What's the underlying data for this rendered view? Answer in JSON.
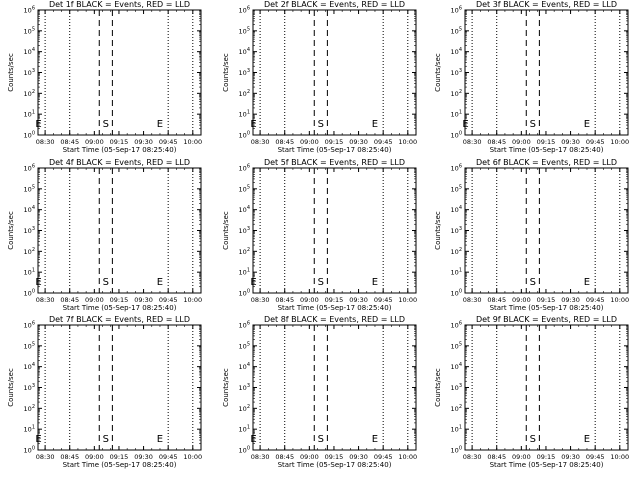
{
  "colors": {
    "background": "#ffffff",
    "events": "#000000",
    "lld": "#ff0000",
    "axes": "#000000"
  },
  "chart_data": [
    {
      "type": "line",
      "title": "Det 1f BLACK = Events, RED = LLD",
      "xlabel": "Start Time (05-Sep-17 08:25:40)",
      "ylabel": "Counts/sec",
      "x_ticks": [
        "08:30",
        "08:45",
        "09:00",
        "09:15",
        "09:30",
        "09:45",
        "10:00"
      ],
      "y_ticks": [
        "10^0",
        "10^1",
        "10^2",
        "10^3",
        "10^4",
        "10^5",
        "10^6"
      ],
      "y_scale": "log",
      "ylim": [
        1,
        1000000
      ],
      "xlim": [
        "08:25:40",
        "10:05:00"
      ],
      "dotted_lines": [
        "08:30",
        "08:45",
        "09:45",
        "10:00"
      ],
      "dashed_lines": [
        "09:03",
        "09:11"
      ],
      "markers": [
        {
          "label": "E",
          "x": "08:26"
        },
        {
          "label": "S",
          "x": "09:07"
        },
        {
          "label": "E",
          "x": "09:40"
        }
      ],
      "series": []
    },
    {
      "type": "line",
      "title": "Det 2f BLACK = Events, RED = LLD",
      "xlabel": "Start Time (05-Sep-17 08:25:40)",
      "ylabel": "Counts/sec",
      "x_ticks": [
        "08:30",
        "08:45",
        "09:00",
        "09:15",
        "09:30",
        "09:45",
        "10:00"
      ],
      "y_ticks": [
        "10^0",
        "10^1",
        "10^2",
        "10^3",
        "10^4",
        "10^5",
        "10^6"
      ],
      "y_scale": "log",
      "ylim": [
        1,
        1000000
      ],
      "xlim": [
        "08:25:40",
        "10:05:00"
      ],
      "dotted_lines": [
        "08:30",
        "08:45",
        "09:45",
        "10:00"
      ],
      "dashed_lines": [
        "09:03",
        "09:11"
      ],
      "markers": [
        {
          "label": "E",
          "x": "08:26"
        },
        {
          "label": "S",
          "x": "09:07"
        },
        {
          "label": "E",
          "x": "09:40"
        }
      ],
      "series": []
    },
    {
      "type": "line",
      "title": "Det 3f BLACK = Events, RED = LLD",
      "xlabel": "Start Time (05-Sep-17 08:25:40)",
      "ylabel": "Counts/sec",
      "x_ticks": [
        "08:30",
        "08:45",
        "09:00",
        "09:15",
        "09:30",
        "09:45",
        "10:00"
      ],
      "y_ticks": [
        "10^0",
        "10^1",
        "10^2",
        "10^3",
        "10^4",
        "10^5",
        "10^6"
      ],
      "y_scale": "log",
      "ylim": [
        1,
        1000000
      ],
      "xlim": [
        "08:25:40",
        "10:05:00"
      ],
      "dotted_lines": [
        "08:30",
        "08:45",
        "09:45",
        "10:00"
      ],
      "dashed_lines": [
        "09:03",
        "09:11"
      ],
      "markers": [
        {
          "label": "E",
          "x": "08:26"
        },
        {
          "label": "S",
          "x": "09:07"
        },
        {
          "label": "E",
          "x": "09:40"
        }
      ],
      "series": []
    },
    {
      "type": "line",
      "title": "Det 4f BLACK = Events, RED = LLD",
      "xlabel": "Start Time (05-Sep-17 08:25:40)",
      "ylabel": "Counts/sec",
      "x_ticks": [
        "08:30",
        "08:45",
        "09:00",
        "09:15",
        "09:30",
        "09:45",
        "10:00"
      ],
      "y_ticks": [
        "10^0",
        "10^1",
        "10^2",
        "10^3",
        "10^4",
        "10^5",
        "10^6"
      ],
      "y_scale": "log",
      "ylim": [
        1,
        1000000
      ],
      "xlim": [
        "08:25:40",
        "10:05:00"
      ],
      "dotted_lines": [
        "08:30",
        "08:45",
        "09:45",
        "10:00"
      ],
      "dashed_lines": [
        "09:03",
        "09:11"
      ],
      "markers": [
        {
          "label": "E",
          "x": "08:26"
        },
        {
          "label": "S",
          "x": "09:07"
        },
        {
          "label": "E",
          "x": "09:40"
        }
      ],
      "series": []
    },
    {
      "type": "line",
      "title": "Det 5f BLACK = Events, RED = LLD",
      "xlabel": "Start Time (05-Sep-17 08:25:40)",
      "ylabel": "Counts/sec",
      "x_ticks": [
        "08:30",
        "08:45",
        "09:00",
        "09:15",
        "09:30",
        "09:45",
        "10:00"
      ],
      "y_ticks": [
        "10^0",
        "10^1",
        "10^2",
        "10^3",
        "10^4",
        "10^5",
        "10^6"
      ],
      "y_scale": "log",
      "ylim": [
        1,
        1000000
      ],
      "xlim": [
        "08:25:40",
        "10:05:00"
      ],
      "dotted_lines": [
        "08:30",
        "08:45",
        "09:45",
        "10:00"
      ],
      "dashed_lines": [
        "09:03",
        "09:11"
      ],
      "markers": [
        {
          "label": "E",
          "x": "08:26"
        },
        {
          "label": "S",
          "x": "09:07"
        },
        {
          "label": "E",
          "x": "09:40"
        }
      ],
      "series": []
    },
    {
      "type": "line",
      "title": "Det 6f BLACK = Events, RED = LLD",
      "xlabel": "Start Time (05-Sep-17 08:25:40)",
      "ylabel": "Counts/sec",
      "x_ticks": [
        "08:30",
        "08:45",
        "09:00",
        "09:15",
        "09:30",
        "09:45",
        "10:00"
      ],
      "y_ticks": [
        "10^0",
        "10^1",
        "10^2",
        "10^3",
        "10^4",
        "10^5",
        "10^6"
      ],
      "y_scale": "log",
      "ylim": [
        1,
        1000000
      ],
      "xlim": [
        "08:25:40",
        "10:05:00"
      ],
      "dotted_lines": [
        "08:30",
        "08:45",
        "09:45",
        "10:00"
      ],
      "dashed_lines": [
        "09:03",
        "09:11"
      ],
      "markers": [
        {
          "label": "S",
          "x": "09:07"
        },
        {
          "label": "E",
          "x": "09:40"
        }
      ],
      "series": []
    },
    {
      "type": "line",
      "title": "Det 7f BLACK = Events, RED = LLD",
      "xlabel": "Start Time (05-Sep-17 08:25:40)",
      "ylabel": "Counts/sec",
      "x_ticks": [
        "08:30",
        "08:45",
        "09:00",
        "09:15",
        "09:30",
        "09:45",
        "10:00"
      ],
      "y_ticks": [
        "10^0",
        "10^1",
        "10^2",
        "10^3",
        "10^4",
        "10^5",
        "10^6"
      ],
      "y_scale": "log",
      "ylim": [
        1,
        1000000
      ],
      "xlim": [
        "08:25:40",
        "10:05:00"
      ],
      "dotted_lines": [
        "08:30",
        "08:45",
        "09:45",
        "10:00"
      ],
      "dashed_lines": [
        "09:03",
        "09:11"
      ],
      "markers": [
        {
          "label": "E",
          "x": "08:26"
        },
        {
          "label": "S",
          "x": "09:07"
        },
        {
          "label": "E",
          "x": "09:40"
        }
      ],
      "series": []
    },
    {
      "type": "line",
      "title": "Det 8f BLACK = Events, RED = LLD",
      "xlabel": "Start Time (05-Sep-17 08:25:40)",
      "ylabel": "Counts/sec",
      "x_ticks": [
        "08:30",
        "08:45",
        "09:00",
        "09:15",
        "09:30",
        "09:45",
        "10:00"
      ],
      "y_ticks": [
        "10^0",
        "10^1",
        "10^2",
        "10^3",
        "10^4",
        "10^5",
        "10^6"
      ],
      "y_scale": "log",
      "ylim": [
        1,
        1000000
      ],
      "xlim": [
        "08:25:40",
        "10:05:00"
      ],
      "dotted_lines": [
        "08:30",
        "08:45",
        "09:45",
        "10:00"
      ],
      "dashed_lines": [
        "09:03",
        "09:11"
      ],
      "markers": [
        {
          "label": "E",
          "x": "08:26"
        },
        {
          "label": "S",
          "x": "09:07"
        },
        {
          "label": "E",
          "x": "09:40"
        }
      ],
      "series": []
    },
    {
      "type": "line",
      "title": "Det 9f BLACK = Events, RED = LLD",
      "xlabel": "Start Time (05-Sep-17 08:25:40)",
      "ylabel": "Counts/sec",
      "x_ticks": [
        "08:30",
        "08:45",
        "09:00",
        "09:15",
        "09:30",
        "09:45",
        "10:00"
      ],
      "y_ticks": [
        "10^0",
        "10^1",
        "10^2",
        "10^3",
        "10^4",
        "10^5",
        "10^6"
      ],
      "y_scale": "log",
      "ylim": [
        1,
        1000000
      ],
      "xlim": [
        "08:25:40",
        "10:05:00"
      ],
      "dotted_lines": [
        "08:30",
        "08:45",
        "09:45",
        "10:00"
      ],
      "dashed_lines": [
        "09:03",
        "09:11"
      ],
      "markers": [
        {
          "label": "S",
          "x": "09:07"
        },
        {
          "label": "E",
          "x": "09:40"
        }
      ],
      "series": []
    }
  ]
}
